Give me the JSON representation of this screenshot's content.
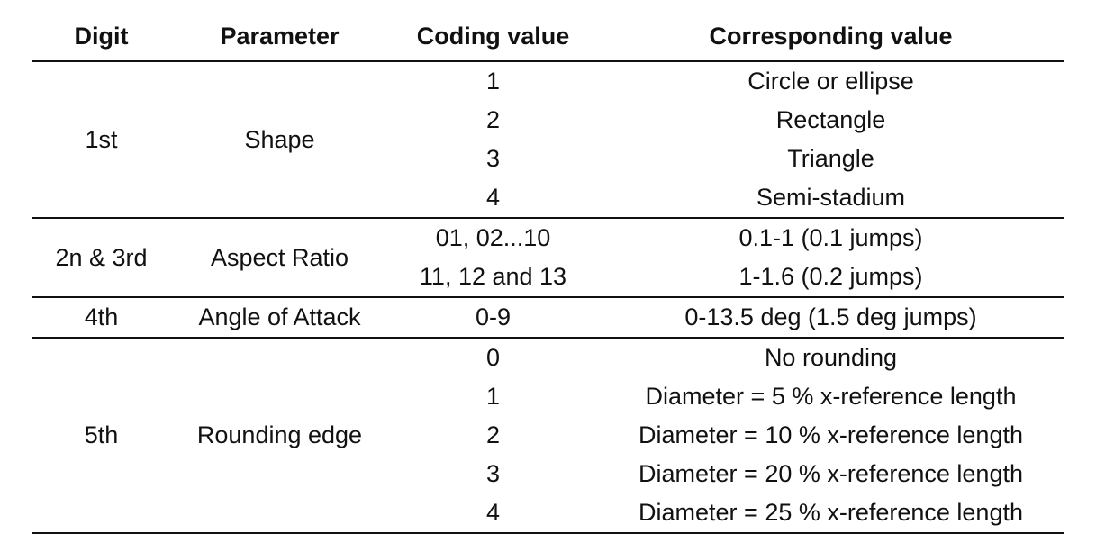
{
  "table": {
    "headers": [
      "Digit",
      "Parameter",
      "Coding value",
      "Corresponding value"
    ],
    "groups": [
      {
        "digit": "1st",
        "parameter": "Shape",
        "rows": [
          {
            "code": "1",
            "value": "Circle or ellipse"
          },
          {
            "code": "2",
            "value": "Rectangle"
          },
          {
            "code": "3",
            "value": "Triangle"
          },
          {
            "code": "4",
            "value": "Semi-stadium"
          }
        ]
      },
      {
        "digit": "2n & 3rd",
        "parameter": "Aspect Ratio",
        "rows": [
          {
            "code": "01, 02...10",
            "value": "0.1-1 (0.1 jumps)"
          },
          {
            "code": "11, 12 and 13",
            "value": "1-1.6 (0.2 jumps)"
          }
        ]
      },
      {
        "digit": "4th",
        "parameter": "Angle of Attack",
        "rows": [
          {
            "code": "0-9",
            "value": "0-13.5 deg (1.5 deg jumps)"
          }
        ]
      },
      {
        "digit": "5th",
        "parameter": "Rounding edge",
        "rows": [
          {
            "code": "0",
            "value": "No rounding"
          },
          {
            "code": "1",
            "value": "Diameter = 5 % x-reference length"
          },
          {
            "code": "2",
            "value": "Diameter = 10 % x-reference length"
          },
          {
            "code": "3",
            "value": "Diameter = 20 % x-reference length"
          },
          {
            "code": "4",
            "value": "Diameter = 25 % x-reference length"
          }
        ]
      }
    ]
  }
}
